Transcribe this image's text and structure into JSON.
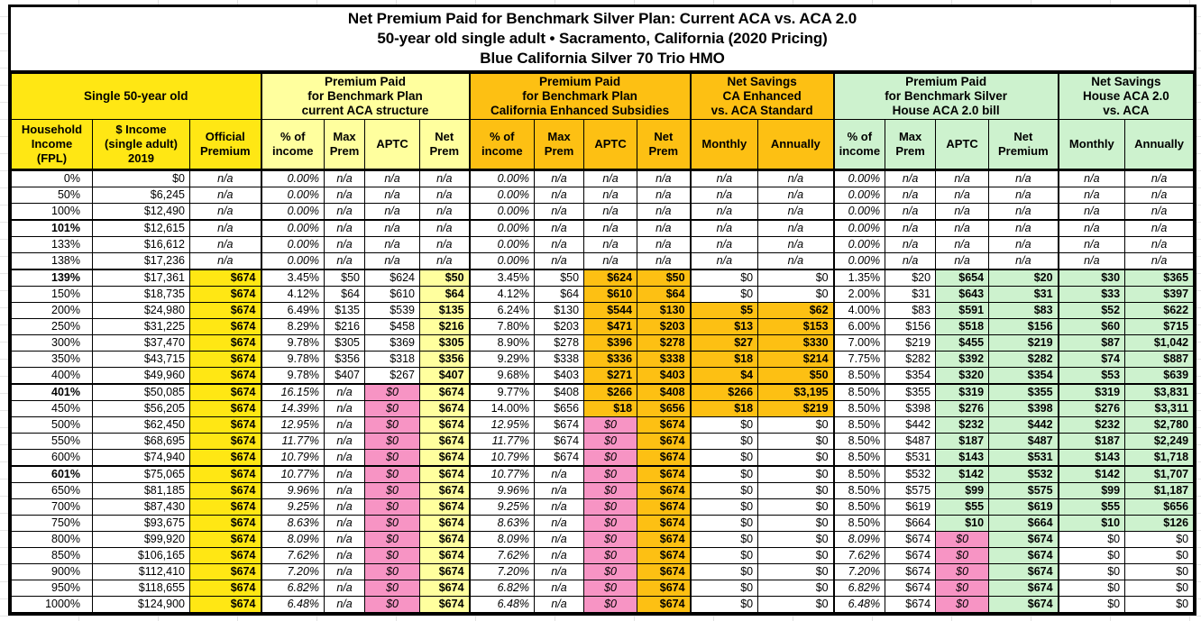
{
  "title": {
    "line1": "Net Premium Paid for Benchmark Silver Plan: Current ACA vs. ACA 2.0",
    "line2": "50-year old single adult • Sacramento, California (2020 Pricing)",
    "line3": "Blue California Silver 70 Trio HMO"
  },
  "colors": {
    "yellow": "#ffe714",
    "pale_yellow": "#ffff9e",
    "orange": "#fdc013",
    "light_green": "#cdf2ce",
    "pink": "#f794c4",
    "border": "#000000"
  },
  "headers": {
    "groups": [
      {
        "label": "Single 50-year old",
        "span": 3,
        "bg": "y"
      },
      {
        "label": "Premium Paid\nfor Benchmark Plan\ncurrent ACA structure",
        "span": 4,
        "bg": "py"
      },
      {
        "label": "Premium Paid\nfor Benchmark Plan\nCalifornia Enhanced Subsidies",
        "span": 4,
        "bg": "o"
      },
      {
        "label": "Net Savings\nCA Enhanced\nvs. ACA Standard",
        "span": 2,
        "bg": "o"
      },
      {
        "label": "Premium Paid\nfor Benchmark Silver\nHouse ACA 2.0 bill",
        "span": 4,
        "bg": "g"
      },
      {
        "label": "Net Savings\nHouse ACA 2.0\nvs. ACA",
        "span": 2,
        "bg": "g"
      }
    ],
    "cols": [
      {
        "key": "fpl",
        "label": "Household\nIncome\n(FPL)",
        "bg": "y"
      },
      {
        "key": "income",
        "label": "$ Income\n(single adult)\n2019",
        "bg": "y"
      },
      {
        "key": "official",
        "label": "Official\nPremium",
        "bg": "y"
      },
      {
        "key": "aca_pct",
        "label": "% of\nincome",
        "bg": "py"
      },
      {
        "key": "aca_max",
        "label": "Max\nPrem",
        "bg": "py"
      },
      {
        "key": "aca_aptc",
        "label": "APTC",
        "bg": "py"
      },
      {
        "key": "aca_net",
        "label": "Net\nPrem",
        "bg": "py"
      },
      {
        "key": "ca_pct",
        "label": "% of\nincome",
        "bg": "o"
      },
      {
        "key": "ca_max",
        "label": "Max\nPrem",
        "bg": "o"
      },
      {
        "key": "ca_aptc",
        "label": "APTC",
        "bg": "o"
      },
      {
        "key": "ca_net",
        "label": "Net\nPrem",
        "bg": "o"
      },
      {
        "key": "ca_monthly",
        "label": "Monthly",
        "bg": "o"
      },
      {
        "key": "ca_annually",
        "label": "Annually",
        "bg": "o"
      },
      {
        "key": "h_pct",
        "label": "% of\nincome",
        "bg": "g"
      },
      {
        "key": "h_max",
        "label": "Max\nPrem",
        "bg": "g"
      },
      {
        "key": "h_aptc",
        "label": "APTC",
        "bg": "g"
      },
      {
        "key": "h_net",
        "label": "Net\nPremium",
        "bg": "g"
      },
      {
        "key": "h_monthly",
        "label": "Monthly",
        "bg": "g"
      },
      {
        "key": "h_annually",
        "label": "Annually",
        "bg": "g"
      }
    ]
  },
  "table": {
    "rows": [
      {
        "cells": [
          "0%",
          "$0",
          "n/a|i c",
          "0.00%|i",
          "n/a|i c",
          "n/a|i c",
          "n/a|i c",
          "0.00%|i",
          "n/a|i c",
          "n/a|i c",
          "n/a|i c",
          "n/a|i c",
          "n/a|i c",
          "0.00%|i",
          "n/a|i c",
          "n/a|i c",
          "n/a|i c",
          "n/a|i c",
          "n/a|i c"
        ]
      },
      {
        "cells": [
          "50%",
          "$6,245",
          "n/a|i c",
          "0.00%|i",
          "n/a|i c",
          "n/a|i c",
          "n/a|i c",
          "0.00%|i",
          "n/a|i c",
          "n/a|i c",
          "n/a|i c",
          "n/a|i c",
          "n/a|i c",
          "0.00%|i",
          "n/a|i c",
          "n/a|i c",
          "n/a|i c",
          "n/a|i c",
          "n/a|i c"
        ]
      },
      {
        "sep": true,
        "cells": [
          "100%",
          "$12,490",
          "n/a|i c",
          "0.00%|i",
          "n/a|i c",
          "n/a|i c",
          "n/a|i c",
          "0.00%|i",
          "n/a|i c",
          "n/a|i c",
          "n/a|i c",
          "n/a|i c",
          "n/a|i c",
          "0.00%|i",
          "n/a|i c",
          "n/a|i c",
          "n/a|i c",
          "n/a|i c",
          "n/a|i c"
        ]
      },
      {
        "cells": [
          "101%|b",
          "$12,615",
          "n/a|i c",
          "0.00%|i",
          "n/a|i c",
          "n/a|i c",
          "n/a|i c",
          "0.00%|i",
          "n/a|i c",
          "n/a|i c",
          "n/a|i c",
          "n/a|i c",
          "n/a|i c",
          "0.00%|i",
          "n/a|i c",
          "n/a|i c",
          "n/a|i c",
          "n/a|i c",
          "n/a|i c"
        ]
      },
      {
        "cells": [
          "133%",
          "$16,612",
          "n/a|i c",
          "0.00%|i",
          "n/a|i c",
          "n/a|i c",
          "n/a|i c",
          "0.00%|i",
          "n/a|i c",
          "n/a|i c",
          "n/a|i c",
          "n/a|i c",
          "n/a|i c",
          "0.00%|i",
          "n/a|i c",
          "n/a|i c",
          "n/a|i c",
          "n/a|i c",
          "n/a|i c"
        ]
      },
      {
        "sep": true,
        "cells": [
          "138%",
          "$17,236",
          "n/a|i c",
          "0.00%|i",
          "n/a|i c",
          "n/a|i c",
          "n/a|i c",
          "0.00%|i",
          "n/a|i c",
          "n/a|i c",
          "n/a|i c",
          "n/a|i c",
          "n/a|i c",
          "0.00%|i",
          "n/a|i c",
          "n/a|i c",
          "n/a|i c",
          "n/a|i c",
          "n/a|i c"
        ]
      },
      {
        "cells": [
          "139%|b",
          "$17,361",
          "$674|y b",
          "3.45%",
          "$50",
          "$624",
          "$50|py b",
          "3.45%",
          "$50",
          "$624|o b",
          "$50|o b",
          "$0",
          "$0",
          "1.35%",
          "$20",
          "$654|g b",
          "$20|g b",
          "$30|g b",
          "$365|g b"
        ]
      },
      {
        "cells": [
          "150%",
          "$18,735",
          "$674|y b",
          "4.12%",
          "$64",
          "$610",
          "$64|py b",
          "4.12%",
          "$64",
          "$610|o b",
          "$64|o b",
          "$0",
          "$0",
          "2.00%",
          "$31",
          "$643|g b",
          "$31|g b",
          "$33|g b",
          "$397|g b"
        ]
      },
      {
        "cells": [
          "200%",
          "$24,980",
          "$674|y b",
          "6.49%",
          "$135",
          "$539",
          "$135|py b",
          "6.24%",
          "$130",
          "$544|o b",
          "$130|o b",
          "$5|o b",
          "$62|o b",
          "4.00%",
          "$83",
          "$591|g b",
          "$83|g b",
          "$52|g b",
          "$622|g b"
        ]
      },
      {
        "cells": [
          "250%",
          "$31,225",
          "$674|y b",
          "8.29%",
          "$216",
          "$458",
          "$216|py b",
          "7.80%",
          "$203",
          "$471|o b",
          "$203|o b",
          "$13|o b",
          "$153|o b",
          "6.00%",
          "$156",
          "$518|g b",
          "$156|g b",
          "$60|g b",
          "$715|g b"
        ]
      },
      {
        "cells": [
          "300%",
          "$37,470",
          "$674|y b",
          "9.78%",
          "$305",
          "$369",
          "$305|py b",
          "8.90%",
          "$278",
          "$396|o b",
          "$278|o b",
          "$27|o b",
          "$330|o b",
          "7.00%",
          "$219",
          "$455|g b",
          "$219|g b",
          "$87|g b",
          "$1,042|g b"
        ]
      },
      {
        "cells": [
          "350%",
          "$43,715",
          "$674|y b",
          "9.78%",
          "$356",
          "$318",
          "$356|py b",
          "9.29%",
          "$338",
          "$336|o b",
          "$338|o b",
          "$18|o b",
          "$214|o b",
          "7.75%",
          "$282",
          "$392|g b",
          "$282|g b",
          "$74|g b",
          "$887|g b"
        ]
      },
      {
        "sep": true,
        "cells": [
          "400%",
          "$49,960",
          "$674|y b",
          "9.78%",
          "$407",
          "$267",
          "$407|py b",
          "9.68%",
          "$403",
          "$271|o b",
          "$403|o b",
          "$4|o b",
          "$50|o b",
          "8.50%",
          "$354",
          "$320|g b",
          "$354|g b",
          "$53|g b",
          "$639|g b"
        ]
      },
      {
        "cells": [
          "401%|b",
          "$50,085",
          "$674|y b",
          "16.15%|i",
          "n/a|i c",
          "$0|p i c",
          "$674|py b",
          "9.77%",
          "$408",
          "$266|o b",
          "$408|o b",
          "$266|o b",
          "$3,195|o b",
          "8.50%",
          "$355",
          "$319|g b",
          "$355|g b",
          "$319|g b",
          "$3,831|g b"
        ]
      },
      {
        "cells": [
          "450%",
          "$56,205",
          "$674|y b",
          "14.39%|i",
          "n/a|i c",
          "$0|p i c",
          "$674|py b",
          "14.00%",
          "$656",
          "$18|o b",
          "$656|o b",
          "$18|o b",
          "$219|o b",
          "8.50%",
          "$398",
          "$276|g b",
          "$398|g b",
          "$276|g b",
          "$3,311|g b"
        ]
      },
      {
        "cells": [
          "500%",
          "$62,450",
          "$674|y b",
          "12.95%|i",
          "n/a|i c",
          "$0|p i c",
          "$674|py b",
          "12.95%|i",
          "$674",
          "$0|p i c",
          "$674|o b",
          "$0",
          "$0",
          "8.50%",
          "$442",
          "$232|g b",
          "$442|g b",
          "$232|g b",
          "$2,780|g b"
        ]
      },
      {
        "cells": [
          "550%",
          "$68,695",
          "$674|y b",
          "11.77%|i",
          "n/a|i c",
          "$0|p i c",
          "$674|py b",
          "11.77%|i",
          "$674",
          "$0|p i c",
          "$674|o b",
          "$0",
          "$0",
          "8.50%",
          "$487",
          "$187|g b",
          "$487|g b",
          "$187|g b",
          "$2,249|g b"
        ]
      },
      {
        "sep": true,
        "cells": [
          "600%",
          "$74,940",
          "$674|y b",
          "10.79%|i",
          "n/a|i c",
          "$0|p i c",
          "$674|py b",
          "10.79%|i",
          "$674",
          "$0|p i c",
          "$674|o b",
          "$0",
          "$0",
          "8.50%",
          "$531",
          "$143|g b",
          "$531|g b",
          "$143|g b",
          "$1,718|g b"
        ]
      },
      {
        "cells": [
          "601%|b",
          "$75,065",
          "$674|y b",
          "10.77%|i",
          "n/a|i c",
          "$0|p i c",
          "$674|py b",
          "10.77%|i",
          "n/a|i c",
          "$0|p i c",
          "$674|o b",
          "$0",
          "$0",
          "8.50%",
          "$532",
          "$142|g b",
          "$532|g b",
          "$142|g b",
          "$1,707|g b"
        ]
      },
      {
        "cells": [
          "650%",
          "$81,185",
          "$674|y b",
          "9.96%|i",
          "n/a|i c",
          "$0|p i c",
          "$674|py b",
          "9.96%|i",
          "n/a|i c",
          "$0|p i c",
          "$674|o b",
          "$0",
          "$0",
          "8.50%",
          "$575",
          "$99|g b",
          "$575|g b",
          "$99|g b",
          "$1,187|g b"
        ]
      },
      {
        "cells": [
          "700%",
          "$87,430",
          "$674|y b",
          "9.25%|i",
          "n/a|i c",
          "$0|p i c",
          "$674|py b",
          "9.25%|i",
          "n/a|i c",
          "$0|p i c",
          "$674|o b",
          "$0",
          "$0",
          "8.50%",
          "$619",
          "$55|g b",
          "$619|g b",
          "$55|g b",
          "$656|g b"
        ]
      },
      {
        "cells": [
          "750%",
          "$93,675",
          "$674|y b",
          "8.63%|i",
          "n/a|i c",
          "$0|p i c",
          "$674|py b",
          "8.63%|i",
          "n/a|i c",
          "$0|p i c",
          "$674|o b",
          "$0",
          "$0",
          "8.50%",
          "$664",
          "$10|g b",
          "$664|g b",
          "$10|g b",
          "$126|g b"
        ]
      },
      {
        "cells": [
          "800%",
          "$99,920",
          "$674|y b",
          "8.09%|i",
          "n/a|i c",
          "$0|p i c",
          "$674|py b",
          "8.09%|i",
          "n/a|i c",
          "$0|p i c",
          "$674|o b",
          "$0",
          "$0",
          "8.09%|i",
          "$674",
          "$0|p i c",
          "$674|g b",
          "$0",
          "$0"
        ]
      },
      {
        "cells": [
          "850%",
          "$106,165",
          "$674|y b",
          "7.62%|i",
          "n/a|i c",
          "$0|p i c",
          "$674|py b",
          "7.62%|i",
          "n/a|i c",
          "$0|p i c",
          "$674|o b",
          "$0",
          "$0",
          "7.62%|i",
          "$674",
          "$0|p i c",
          "$674|g b",
          "$0",
          "$0"
        ]
      },
      {
        "cells": [
          "900%",
          "$112,410",
          "$674|y b",
          "7.20%|i",
          "n/a|i c",
          "$0|p i c",
          "$674|py b",
          "7.20%|i",
          "n/a|i c",
          "$0|p i c",
          "$674|o b",
          "$0",
          "$0",
          "7.20%|i",
          "$674",
          "$0|p i c",
          "$674|g b",
          "$0",
          "$0"
        ]
      },
      {
        "cells": [
          "950%",
          "$118,655",
          "$674|y b",
          "6.82%|i",
          "n/a|i c",
          "$0|p i c",
          "$674|py b",
          "6.82%|i",
          "n/a|i c",
          "$0|p i c",
          "$674|o b",
          "$0",
          "$0",
          "6.82%|i",
          "$674",
          "$0|p i c",
          "$674|g b",
          "$0",
          "$0"
        ]
      },
      {
        "cells": [
          "1000%",
          "$124,900",
          "$674|y b",
          "6.48%|i",
          "n/a|i c",
          "$0|p i c",
          "$674|py b",
          "6.48%|i",
          "n/a|i c",
          "$0|p i c",
          "$674|o b",
          "$0",
          "$0",
          "6.48%|i",
          "$674",
          "$0|p i c",
          "$674|g b",
          "$0",
          "$0"
        ]
      }
    ]
  }
}
